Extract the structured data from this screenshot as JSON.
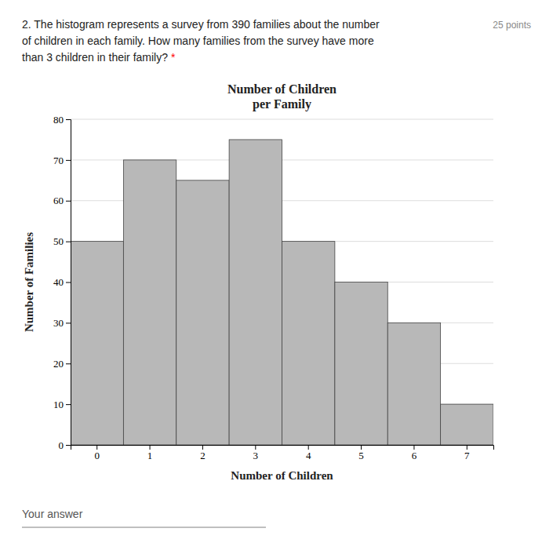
{
  "question": [
    "2. The histogram represents a survey from 390 families about the number",
    "of children in each family. How many families from the survey have more",
    "than 3 children in their family?"
  ],
  "required_mark": "*",
  "points": "25 points",
  "answer_label": "Your answer",
  "chart_data": {
    "type": "bar",
    "title": [
      "Number of Children",
      "per Family"
    ],
    "x_label": "Number of Children",
    "y_label": "Number of Families",
    "categories": [
      0,
      1,
      2,
      3,
      4,
      5,
      6,
      7
    ],
    "values": [
      50,
      70,
      65,
      75,
      50,
      40,
      30,
      10
    ],
    "color": "#b8b8b8",
    "ylim": [
      0,
      80
    ],
    "yticks": [
      0,
      10,
      20,
      30,
      40,
      50,
      60,
      70,
      80
    ],
    "grid": true
  }
}
